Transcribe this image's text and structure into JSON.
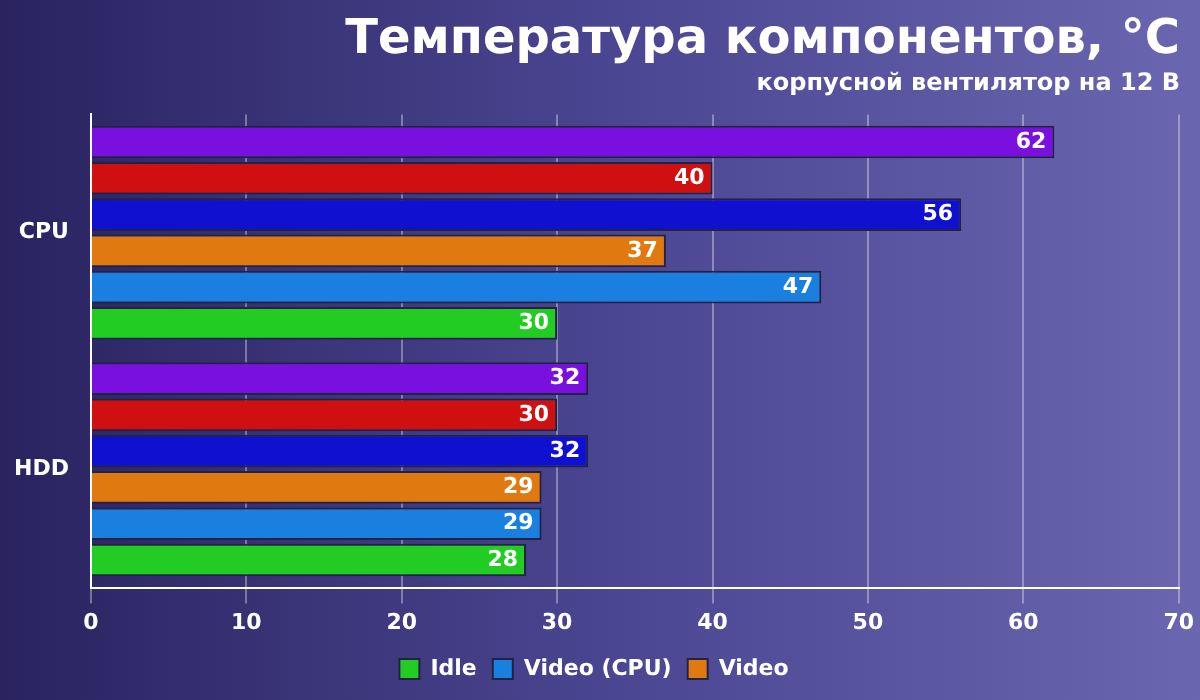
{
  "chart_data": {
    "type": "bar",
    "orientation": "horizontal",
    "title": "Температура компонентов, °C",
    "subtitle": "корпусной вентилятор на 12 В",
    "categories": [
      "CPU",
      "HDD"
    ],
    "series": [
      {
        "name": "Idle",
        "color": "#22cc22",
        "values": [
          30,
          28
        ]
      },
      {
        "name": "Video (CPU)",
        "color": "#1a80e0",
        "values": [
          47,
          29
        ]
      },
      {
        "name": "Video",
        "color": "#e07a10",
        "values": [
          37,
          29
        ]
      },
      {
        "color": "#1010d0",
        "values": [
          56,
          32
        ]
      },
      {
        "color": "#d01010",
        "values": [
          40,
          30
        ]
      },
      {
        "color": "#7a10e0",
        "values": [
          62,
          32
        ]
      }
    ],
    "xlim": [
      0,
      70
    ],
    "xticks": [
      0,
      10,
      20,
      30,
      40,
      50,
      60,
      70
    ],
    "grid": "x",
    "legend": "bottom",
    "data_labels": true
  }
}
